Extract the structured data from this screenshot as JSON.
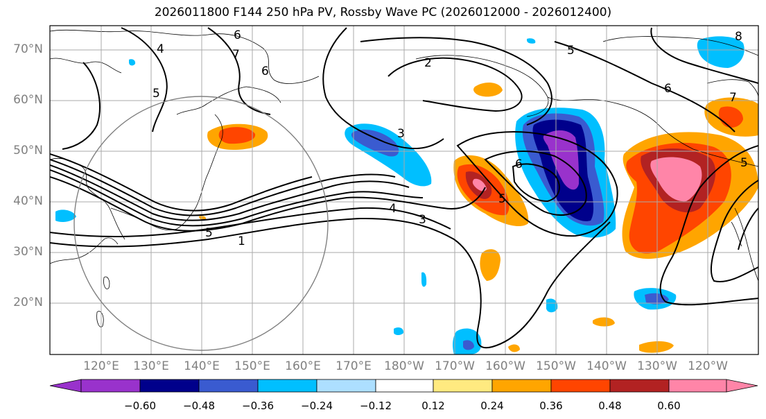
{
  "title": "2026011800 F144 250 hPa PV, Rossby Wave PC (2026012000 - 2026012400)",
  "latitude_labels": [
    "70°N",
    "60°N",
    "50°N",
    "40°N",
    "30°N",
    "20°N"
  ],
  "longitude_labels": [
    "120°E",
    "130°E",
    "140°E",
    "150°E",
    "160°E",
    "170°E",
    "180°W",
    "170°W",
    "160°W",
    "150°W",
    "140°W",
    "130°W",
    "120°W"
  ],
  "contour_labels": [
    "6",
    "7",
    "4",
    "5",
    "6",
    "2",
    "5",
    "8",
    "6",
    "3",
    "7",
    "6",
    "5",
    "4",
    "3",
    "1",
    "5",
    "5"
  ],
  "colorbar": {
    "tick_labels": [
      "−0.60",
      "−0.48",
      "−0.36",
      "−0.24",
      "−0.12",
      "0.12",
      "0.24",
      "0.36",
      "0.48",
      "0.60"
    ],
    "colors": [
      "#9932CC",
      "#00008B",
      "#3A5BD0",
      "#00BFFF",
      "#ADDFFF",
      "#FFFFFF",
      "#FFEA80",
      "#FFA500",
      "#FF4500",
      "#B22222",
      "#FF85A8"
    ]
  }
}
